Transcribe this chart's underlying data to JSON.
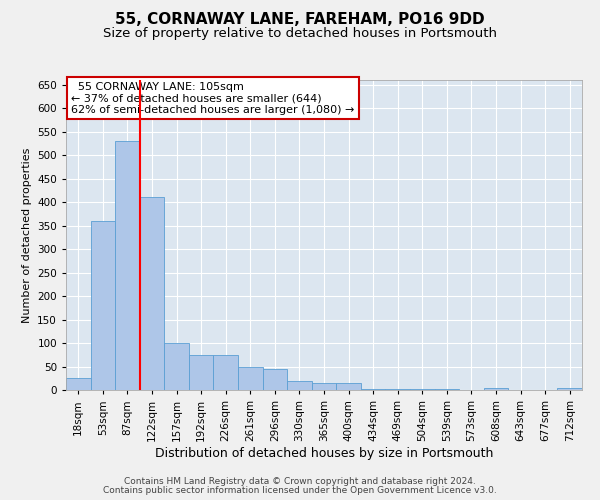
{
  "title": "55, CORNAWAY LANE, FAREHAM, PO16 9DD",
  "subtitle": "Size of property relative to detached houses in Portsmouth",
  "xlabel": "Distribution of detached houses by size in Portsmouth",
  "ylabel": "Number of detached properties",
  "categories": [
    "18sqm",
    "53sqm",
    "87sqm",
    "122sqm",
    "157sqm",
    "192sqm",
    "226sqm",
    "261sqm",
    "296sqm",
    "330sqm",
    "365sqm",
    "400sqm",
    "434sqm",
    "469sqm",
    "504sqm",
    "539sqm",
    "573sqm",
    "608sqm",
    "643sqm",
    "677sqm",
    "712sqm"
  ],
  "values": [
    25,
    360,
    530,
    410,
    100,
    75,
    75,
    50,
    45,
    20,
    15,
    15,
    3,
    3,
    3,
    3,
    0,
    5,
    0,
    0,
    5
  ],
  "bar_color": "#aec6e8",
  "bar_edge_color": "#5a9fd4",
  "background_color": "#dce6f0",
  "grid_color": "#ffffff",
  "annotation_text": "  55 CORNAWAY LANE: 105sqm  \n← 37% of detached houses are smaller (644)\n62% of semi-detached houses are larger (1,080) →",
  "annotation_box_color": "#ffffff",
  "annotation_box_edge_color": "#cc0000",
  "red_line_x": 2.5,
  "ylim": [
    0,
    660
  ],
  "yticks": [
    0,
    50,
    100,
    150,
    200,
    250,
    300,
    350,
    400,
    450,
    500,
    550,
    600,
    650
  ],
  "footer_line1": "Contains HM Land Registry data © Crown copyright and database right 2024.",
  "footer_line2": "Contains public sector information licensed under the Open Government Licence v3.0.",
  "title_fontsize": 11,
  "subtitle_fontsize": 9.5,
  "xlabel_fontsize": 9,
  "ylabel_fontsize": 8,
  "tick_fontsize": 7.5,
  "footer_fontsize": 6.5
}
